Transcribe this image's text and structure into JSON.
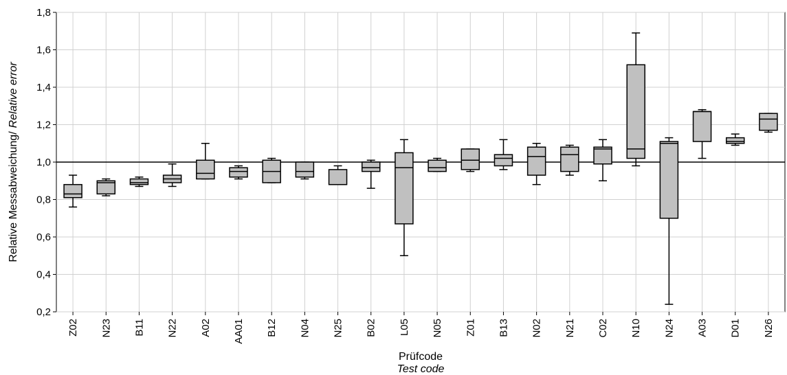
{
  "chart_data": {
    "type": "box",
    "title": "",
    "xlabel": "Prüfcode",
    "xlabel_sub": "Test code",
    "ylabel": "Relative Messabweichung/",
    "ylabel_sub": "Relative error",
    "ylim": [
      0.2,
      1.8
    ],
    "yticks": [
      "0,2",
      "0,4",
      "0,6",
      "0,8",
      "1,0",
      "1,2",
      "1,4",
      "1,6",
      "1,8"
    ],
    "reference_line": 1.0,
    "grid": true,
    "box_color": "#c0c0c0",
    "categories": [
      "Z02",
      "N23",
      "B11",
      "N22",
      "A02",
      "AA01",
      "B12",
      "N04",
      "N25",
      "B02",
      "L05",
      "N05",
      "Z01",
      "B13",
      "N02",
      "N21",
      "C02",
      "N10",
      "N24",
      "A03",
      "D01",
      "N26"
    ],
    "series": [
      {
        "min": 0.76,
        "q1": 0.81,
        "median": 0.83,
        "q3": 0.88,
        "max": 0.93
      },
      {
        "min": 0.82,
        "q1": 0.83,
        "median": 0.89,
        "q3": 0.9,
        "max": 0.91
      },
      {
        "min": 0.87,
        "q1": 0.88,
        "median": 0.89,
        "q3": 0.91,
        "max": 0.92
      },
      {
        "min": 0.87,
        "q1": 0.89,
        "median": 0.91,
        "q3": 0.93,
        "max": 0.99
      },
      {
        "min": 0.91,
        "q1": 0.91,
        "median": 0.94,
        "q3": 1.01,
        "max": 1.1
      },
      {
        "min": 0.91,
        "q1": 0.92,
        "median": 0.95,
        "q3": 0.97,
        "max": 0.98
      },
      {
        "min": 0.89,
        "q1": 0.89,
        "median": 0.95,
        "q3": 1.01,
        "max": 1.02
      },
      {
        "min": 0.91,
        "q1": 0.92,
        "median": 0.95,
        "q3": 1.0,
        "max": 1.0
      },
      {
        "min": 0.88,
        "q1": 0.88,
        "median": 0.88,
        "q3": 0.96,
        "max": 0.98
      },
      {
        "min": 0.86,
        "q1": 0.95,
        "median": 0.97,
        "q3": 1.0,
        "max": 1.01
      },
      {
        "min": 0.5,
        "q1": 0.67,
        "median": 0.97,
        "q3": 1.05,
        "max": 1.12
      },
      {
        "min": 0.95,
        "q1": 0.95,
        "median": 0.97,
        "q3": 1.01,
        "max": 1.02
      },
      {
        "min": 0.95,
        "q1": 0.96,
        "median": 1.01,
        "q3": 1.07,
        "max": 1.07
      },
      {
        "min": 0.96,
        "q1": 0.98,
        "median": 1.02,
        "q3": 1.04,
        "max": 1.12
      },
      {
        "min": 0.88,
        "q1": 0.93,
        "median": 1.03,
        "q3": 1.08,
        "max": 1.1
      },
      {
        "min": 0.93,
        "q1": 0.95,
        "median": 1.04,
        "q3": 1.08,
        "max": 1.09
      },
      {
        "min": 0.9,
        "q1": 0.99,
        "median": 1.07,
        "q3": 1.08,
        "max": 1.12
      },
      {
        "min": 0.98,
        "q1": 1.02,
        "median": 1.07,
        "q3": 1.52,
        "max": 1.69
      },
      {
        "min": 0.24,
        "q1": 0.7,
        "median": 1.1,
        "q3": 1.11,
        "max": 1.13
      },
      {
        "min": 1.02,
        "q1": 1.11,
        "median": 1.27,
        "q3": 1.27,
        "max": 1.28
      },
      {
        "min": 1.09,
        "q1": 1.1,
        "median": 1.11,
        "q3": 1.13,
        "max": 1.15
      },
      {
        "min": 1.16,
        "q1": 1.17,
        "median": 1.23,
        "q3": 1.26,
        "max": 1.26
      }
    ]
  }
}
